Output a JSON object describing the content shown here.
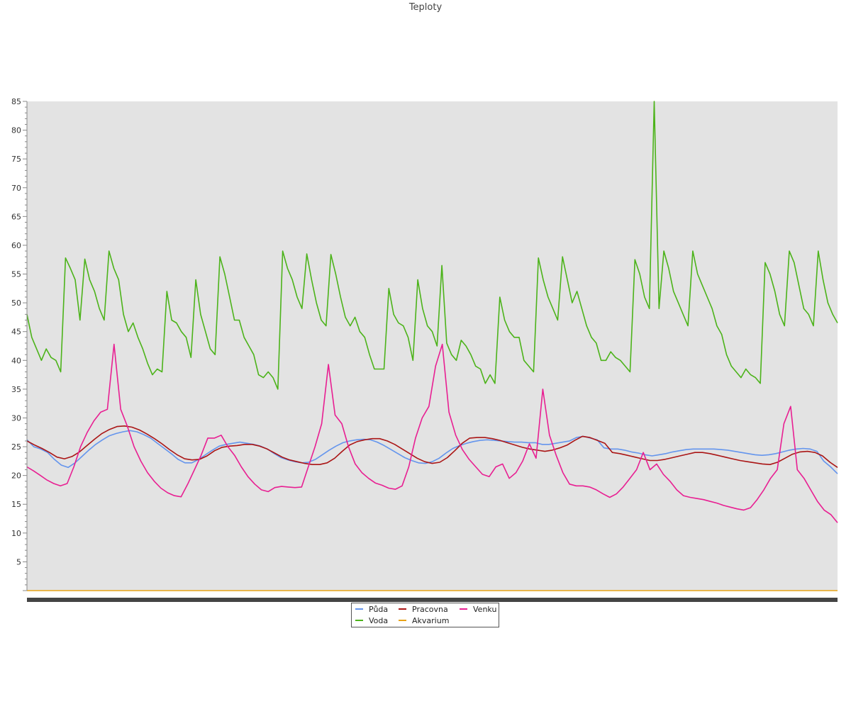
{
  "chart_data": {
    "type": "line",
    "title": "Teploty",
    "xlabel": "",
    "ylabel": "",
    "ylim": [
      0,
      85
    ],
    "yticks": [
      5,
      10,
      15,
      20,
      25,
      30,
      35,
      40,
      45,
      50,
      55,
      60,
      65,
      70,
      75,
      80,
      85
    ],
    "grid": false,
    "legend_position": "bottom-center",
    "background": "#e3e3e3",
    "series": [
      {
        "name": "Půda",
        "color": "#6495ed",
        "values": [
          26.2,
          25.0,
          24.6,
          24.0,
          22.8,
          21.8,
          21.4,
          22.2,
          23.3,
          24.4,
          25.4,
          26.2,
          26.9,
          27.3,
          27.6,
          27.8,
          27.6,
          27.1,
          26.5,
          25.6,
          24.7,
          23.8,
          22.8,
          22.2,
          22.2,
          22.8,
          23.6,
          24.4,
          25.1,
          25.4,
          25.6,
          25.8,
          25.6,
          25.4,
          25.1,
          24.6,
          23.8,
          23.1,
          22.7,
          22.4,
          22.2,
          22.3,
          22.8,
          23.6,
          24.4,
          25.1,
          25.7,
          26.0,
          26.2,
          26.3,
          26.2,
          25.8,
          25.2,
          24.5,
          23.8,
          23.1,
          22.6,
          22.2,
          22.1,
          22.4,
          23.0,
          23.9,
          24.7,
          25.2,
          25.6,
          25.9,
          26.1,
          26.2,
          26.1,
          26.0,
          25.9,
          25.8,
          25.8,
          25.7,
          25.7,
          25.4,
          25.4,
          25.6,
          25.8,
          26.0,
          26.6,
          26.8,
          26.5,
          26.2,
          24.8,
          24.6,
          24.6,
          24.4,
          24.1,
          23.9,
          23.6,
          23.4,
          23.6,
          23.8,
          24.1,
          24.3,
          24.5,
          24.6,
          24.6,
          24.6,
          24.6,
          24.5,
          24.4,
          24.2,
          24.0,
          23.8,
          23.6,
          23.5,
          23.6,
          23.8,
          24.1,
          24.4,
          24.6,
          24.7,
          24.6,
          24.2,
          22.5,
          21.5,
          20.3
        ]
      },
      {
        "name": "Voda",
        "color": "#4cb31a",
        "values": [
          48.0,
          44.0,
          42.0,
          40.0,
          42.0,
          40.5,
          40.0,
          38.0,
          57.8,
          56.0,
          54.0,
          47.0,
          57.6,
          54.0,
          52.0,
          49.0,
          47.0,
          59.0,
          56.0,
          54.0,
          48.0,
          45.0,
          46.5,
          44.0,
          42.0,
          39.5,
          37.5,
          38.5,
          38.0,
          52.0,
          47.0,
          46.5,
          45.0,
          44.0,
          40.5,
          54.0,
          48.0,
          45.0,
          42.0,
          41.0,
          58.0,
          55.0,
          51.0,
          47.0,
          47.0,
          44.0,
          42.5,
          41.0,
          37.5,
          37.0,
          38.0,
          37.0,
          35.0,
          59.0,
          56.0,
          54.0,
          51.0,
          49.0,
          58.5,
          54.0,
          50.0,
          47.0,
          46.0,
          58.4,
          55.0,
          51.0,
          47.5,
          46.0,
          47.5,
          45.0,
          44.0,
          41.0,
          38.5,
          38.5,
          38.5,
          52.5,
          48.0,
          46.5,
          46.0,
          44.0,
          40.0,
          54.0,
          49.0,
          46.0,
          45.0,
          42.5,
          56.5,
          43.0,
          41.0,
          40.0,
          43.5,
          42.5,
          41.0,
          39.0,
          38.5,
          36.0,
          37.5,
          36.0,
          51.0,
          47.0,
          45.0,
          44.0,
          44.0,
          40.0,
          39.0,
          38.0,
          57.8,
          54.0,
          51.0,
          49.0,
          47.0,
          58.0,
          54.0,
          50.0,
          52.0,
          49.0,
          46.0,
          44.0,
          43.0,
          40.0,
          40.0,
          41.5,
          40.5,
          40.0,
          39.0,
          38.0,
          57.5,
          55.0,
          51.0,
          49.0,
          85.0,
          49.0,
          59.0,
          56.0,
          52.0,
          50.0,
          48.0,
          46.0,
          59.0,
          55.0,
          53.0,
          51.0,
          49.0,
          46.0,
          44.5,
          41.0,
          39.0,
          38.0,
          37.0,
          38.5,
          37.5,
          37.0,
          36.0,
          57.0,
          55.0,
          52.0,
          48.0,
          46.0,
          59.0,
          57.0,
          53.0,
          49.0,
          48.0,
          46.0,
          59.0,
          54.0,
          50.0,
          48.0,
          46.5
        ]
      },
      {
        "name": "Pracovna",
        "color": "#aa1515",
        "values": [
          26.0,
          25.3,
          24.7,
          24.0,
          23.2,
          22.9,
          23.3,
          24.1,
          25.2,
          26.3,
          27.3,
          28.0,
          28.5,
          28.6,
          28.4,
          27.9,
          27.2,
          26.4,
          25.5,
          24.5,
          23.6,
          22.9,
          22.7,
          22.8,
          23.4,
          24.3,
          24.9,
          25.1,
          25.2,
          25.4,
          25.4,
          25.1,
          24.6,
          23.9,
          23.2,
          22.7,
          22.4,
          22.1,
          21.9,
          21.9,
          22.2,
          23.0,
          24.2,
          25.3,
          25.9,
          26.2,
          26.4,
          26.4,
          26.0,
          25.4,
          24.6,
          23.8,
          23.0,
          22.4,
          22.1,
          22.3,
          23.1,
          24.3,
          25.6,
          26.5,
          26.6,
          26.6,
          26.4,
          26.1,
          25.7,
          25.3,
          24.9,
          24.6,
          24.4,
          24.2,
          24.4,
          24.8,
          25.3,
          26.1,
          26.8,
          26.6,
          26.1,
          25.6,
          24.0,
          23.8,
          23.5,
          23.2,
          22.9,
          22.6,
          22.6,
          22.8,
          23.1,
          23.4,
          23.7,
          24.0,
          24.0,
          23.8,
          23.5,
          23.2,
          22.9,
          22.6,
          22.4,
          22.2,
          22.0,
          21.9,
          22.3,
          23.0,
          23.7,
          24.1,
          24.2,
          24.0,
          23.4,
          22.3,
          21.4
        ]
      },
      {
        "name": "Akvarium",
        "color": "#e8a316",
        "values": [
          0,
          0,
          0,
          0,
          0,
          0,
          0,
          0,
          0,
          0,
          0,
          0,
          0,
          0,
          0,
          0,
          0,
          0,
          0,
          0,
          0,
          0,
          0,
          0,
          0,
          0,
          0,
          0,
          0,
          0
        ]
      },
      {
        "name": "Venku",
        "color": "#e81f92",
        "values": [
          21.5,
          20.8,
          20.0,
          19.2,
          18.6,
          18.2,
          18.6,
          21.5,
          25.0,
          27.5,
          29.5,
          31.0,
          31.5,
          42.8,
          31.5,
          28.5,
          25.0,
          22.5,
          20.5,
          19.0,
          17.8,
          17.0,
          16.5,
          16.3,
          18.5,
          21.0,
          23.5,
          26.5,
          26.5,
          27.0,
          25.0,
          23.5,
          21.5,
          19.8,
          18.5,
          17.5,
          17.2,
          17.9,
          18.1,
          18.0,
          17.9,
          18.0,
          21.5,
          25.0,
          29.0,
          39.3,
          30.5,
          29.0,
          25.0,
          22.0,
          20.5,
          19.5,
          18.7,
          18.3,
          17.8,
          17.6,
          18.2,
          21.5,
          26.5,
          30.0,
          32.0,
          39.0,
          42.8,
          31.0,
          27.0,
          24.5,
          22.8,
          21.5,
          20.2,
          19.8,
          21.5,
          22.0,
          19.5,
          20.5,
          22.5,
          25.5,
          23.0,
          35.0,
          27.0,
          23.5,
          20.5,
          18.5,
          18.2,
          18.2,
          18.0,
          17.5,
          16.8,
          16.2,
          16.8,
          18.0,
          19.5,
          21.0,
          24.0,
          21.0,
          22.0,
          20.2,
          19.0,
          17.5,
          16.5,
          16.2,
          16.0,
          15.8,
          15.5,
          15.2,
          14.8,
          14.5,
          14.2,
          14.0,
          14.4,
          15.8,
          17.5,
          19.5,
          21.0,
          29.0,
          32.0,
          21.0,
          19.5,
          17.5,
          15.5,
          14.0,
          13.2,
          11.8
        ]
      }
    ]
  }
}
